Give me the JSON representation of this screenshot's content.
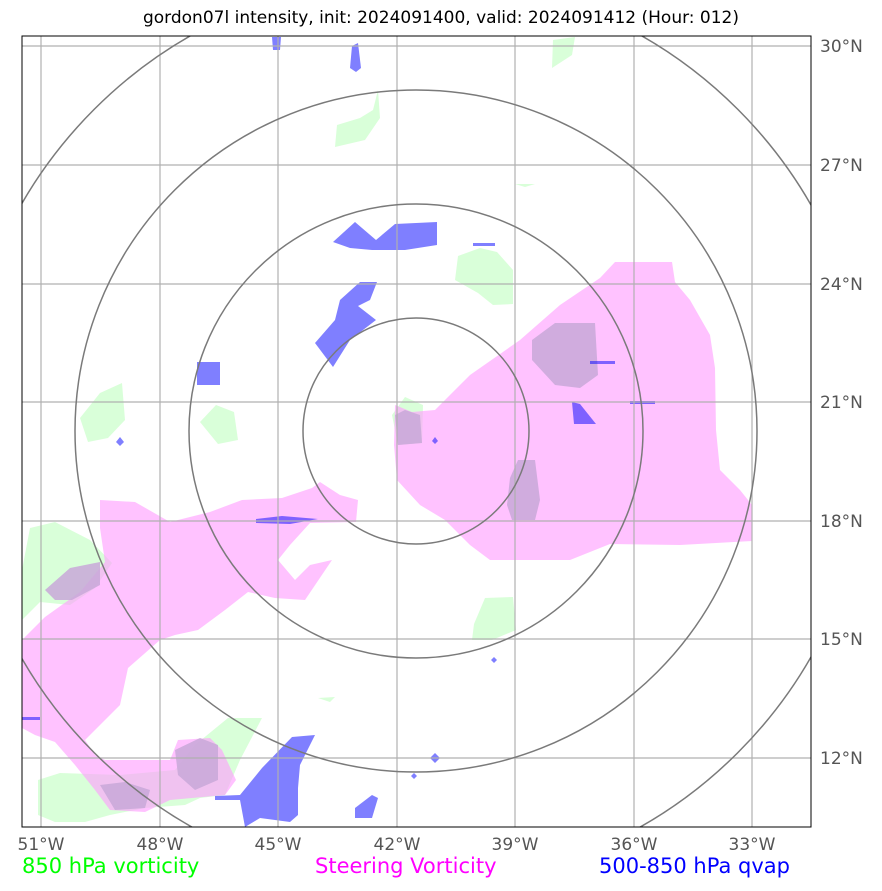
{
  "title": "gordon07l intensity, init: 2024091400, valid: 2024091412 (Hour: 012)",
  "lon_ticks": [
    "51°W",
    "48°W",
    "45°W",
    "42°W",
    "39°W",
    "36°W",
    "33°W"
  ],
  "lat_ticks": [
    "30°N",
    "27°N",
    "24°N",
    "21°N",
    "18°N",
    "15°N",
    "12°N"
  ],
  "legend": {
    "vort850": {
      "label": "850 hPa vorticity",
      "color": "#00ff00"
    },
    "steering": {
      "label": "Steering Vorticity",
      "color": "#ff00ff"
    },
    "qvap": {
      "label": "500-850 hPa qvap",
      "color": "#0000ff"
    }
  },
  "colors": {
    "vort850_fill": "#ccffcc",
    "steering_fill": "#ff99ff",
    "qvap_fill": "#0000ff",
    "grid": "#b0b0b0",
    "rings": "#7a7a7a"
  }
}
